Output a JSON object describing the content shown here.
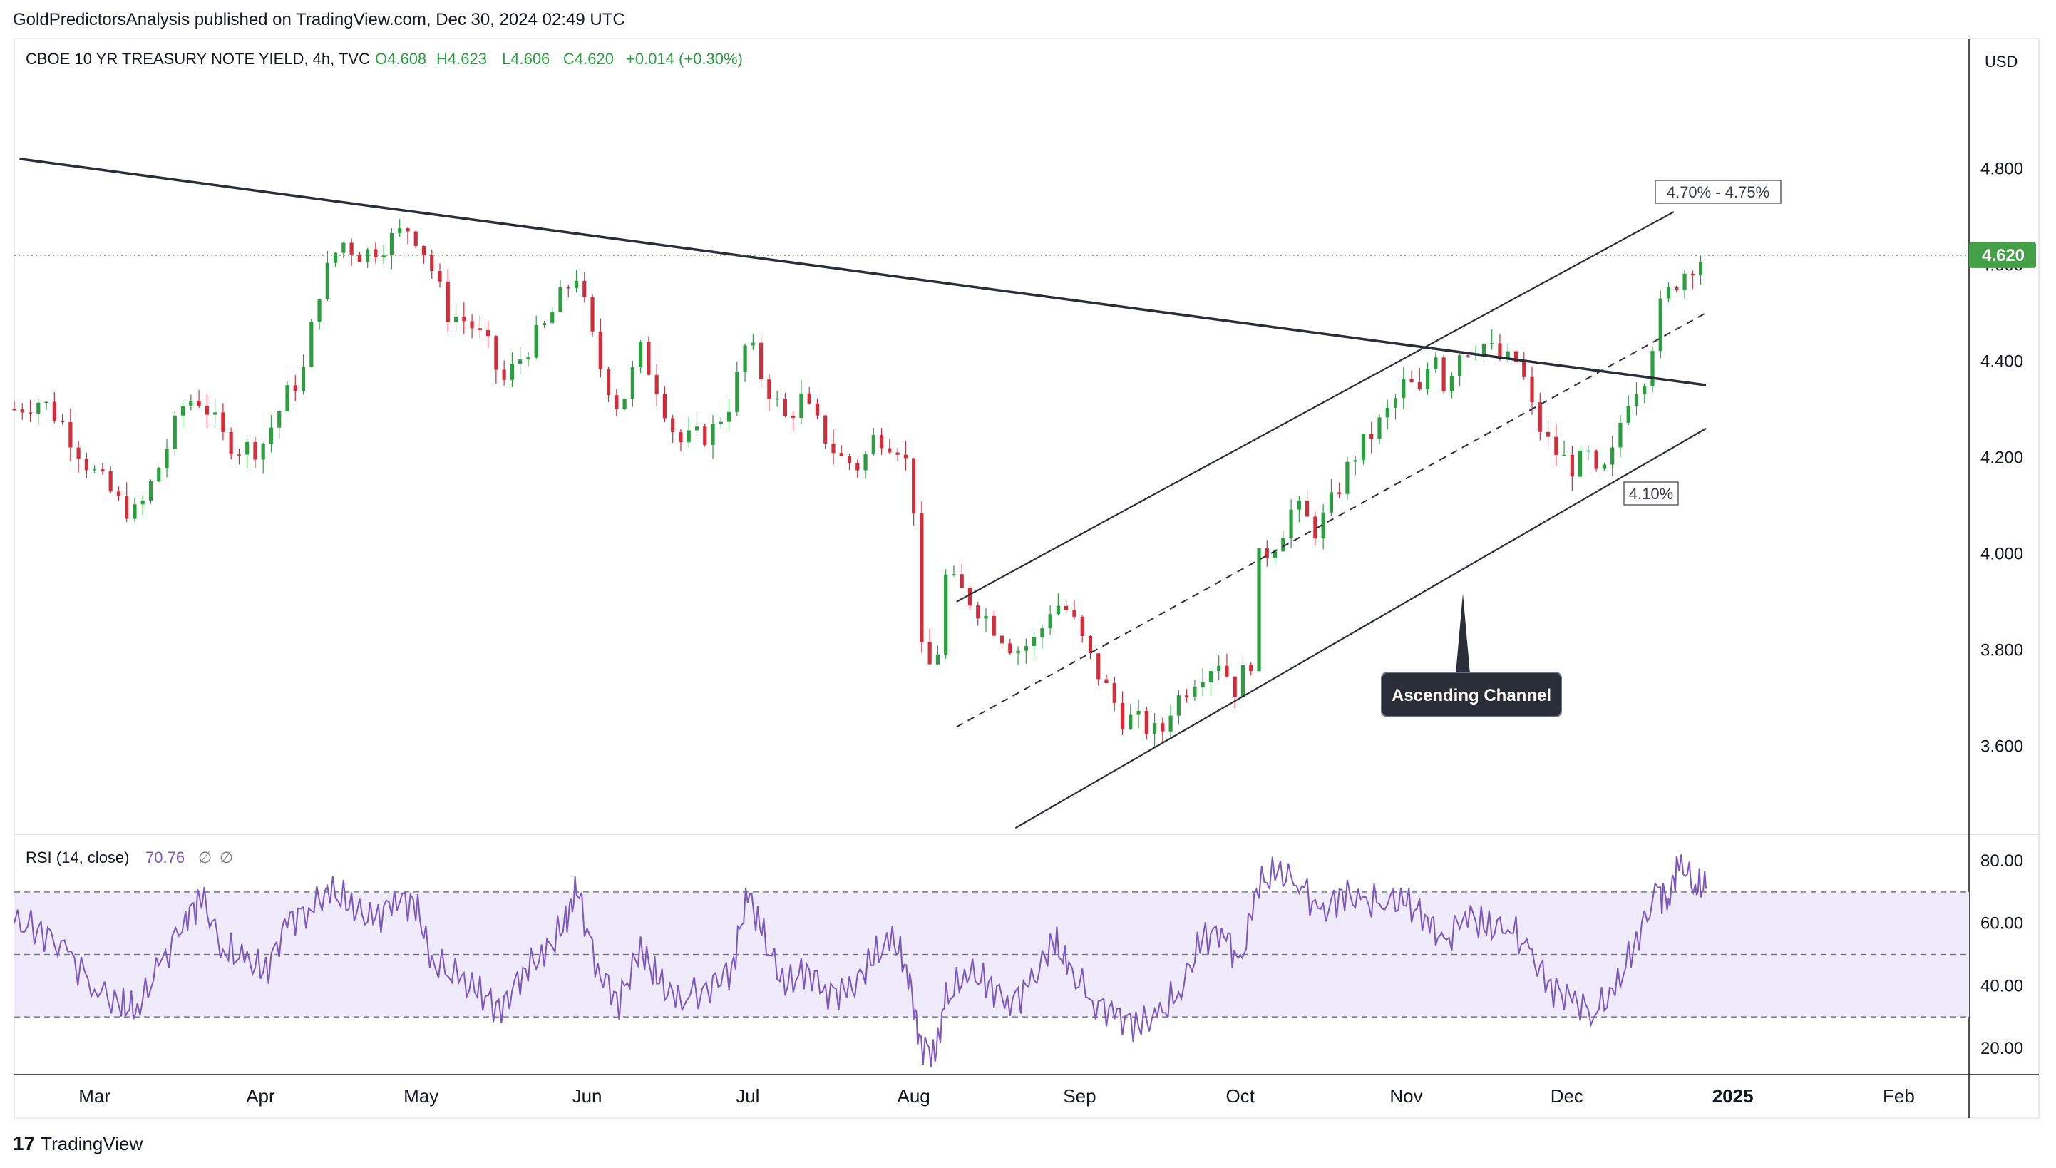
{
  "publisher": "GoldPredictorsAnalysis published on TradingView.com, Dec 30, 2024 02:49 UTC",
  "footer": {
    "logo_text": "TradingView",
    "logo_mark": "17"
  },
  "colors": {
    "up": "#2b9e3f",
    "down": "#cf2e3a",
    "rsi_line": "#7e57c2",
    "rsi_band": "#f0ebfb",
    "trend": "#2a2e39",
    "price_line": "#43a047",
    "grid": "#e0e3eb"
  },
  "chart_data": [
    {
      "type": "candlestick",
      "title": "CBOE 10 YR TREASURY NOTE YIELD, 4h, TVC",
      "ohlc": {
        "open": "O4.608",
        "high": "H4.623",
        "low": "L4.606",
        "close": "C4.620",
        "change": "+0.014 (+0.30%)"
      },
      "currency": "USD",
      "last_price": "4.620",
      "ylim": [
        3.42,
        5.07
      ],
      "y_ticks": [
        "4.800",
        "4.600",
        "4.400",
        "4.200",
        "4.000",
        "3.800",
        "3.600"
      ],
      "x_ticks": [
        "Mar",
        "Apr",
        "May",
        "Jun",
        "Jul",
        "Aug",
        "Sep",
        "Oct",
        "Nov",
        "Dec",
        "2025",
        "Feb"
      ],
      "price_path": [
        [
          "2024-02-15",
          4.3
        ],
        [
          "2024-02-20",
          4.32
        ],
        [
          "2024-02-24",
          4.27
        ],
        [
          "2024-02-29",
          4.18
        ],
        [
          "2024-03-06",
          4.1
        ],
        [
          "2024-03-09",
          4.08
        ],
        [
          "2024-03-13",
          4.18
        ],
        [
          "2024-03-18",
          4.32
        ],
        [
          "2024-03-21",
          4.32
        ],
        [
          "2024-03-25",
          4.24
        ],
        [
          "2024-03-28",
          4.22
        ],
        [
          "2024-04-01",
          4.22
        ],
        [
          "2024-04-06",
          4.33
        ],
        [
          "2024-04-09",
          4.38
        ],
        [
          "2024-04-12",
          4.55
        ],
        [
          "2024-04-16",
          4.65
        ],
        [
          "2024-04-20",
          4.62
        ],
        [
          "2024-04-25",
          4.65
        ],
        [
          "2024-04-29",
          4.68
        ],
        [
          "2024-05-02",
          4.62
        ],
        [
          "2024-05-06",
          4.5
        ],
        [
          "2024-05-10",
          4.48
        ],
        [
          "2024-05-14",
          4.42
        ],
        [
          "2024-05-16",
          4.35
        ],
        [
          "2024-05-21",
          4.43
        ],
        [
          "2024-05-24",
          4.47
        ],
        [
          "2024-05-28",
          4.55
        ],
        [
          "2024-05-30",
          4.58
        ],
        [
          "2024-06-03",
          4.4
        ],
        [
          "2024-06-07",
          4.3
        ],
        [
          "2024-06-11",
          4.42
        ],
        [
          "2024-06-14",
          4.35
        ],
        [
          "2024-06-18",
          4.23
        ],
        [
          "2024-06-24",
          4.25
        ],
        [
          "2024-06-28",
          4.32
        ],
        [
          "2024-07-01",
          4.45
        ],
        [
          "2024-07-03",
          4.38
        ],
        [
          "2024-07-08",
          4.28
        ],
        [
          "2024-07-11",
          4.32
        ],
        [
          "2024-07-15",
          4.25
        ],
        [
          "2024-07-18",
          4.2
        ],
        [
          "2024-07-22",
          4.18
        ],
        [
          "2024-07-25",
          4.25
        ],
        [
          "2024-07-30",
          4.22
        ],
        [
          "2024-08-01",
          4.1
        ],
        [
          "2024-08-02",
          3.8
        ],
        [
          "2024-08-05",
          3.75
        ],
        [
          "2024-08-07",
          3.95
        ],
        [
          "2024-08-12",
          3.9
        ],
        [
          "2024-08-16",
          3.85
        ],
        [
          "2024-08-20",
          3.8
        ],
        [
          "2024-08-24",
          3.82
        ],
        [
          "2024-08-27",
          3.9
        ],
        [
          "2024-08-30",
          3.88
        ],
        [
          "2024-09-03",
          3.78
        ],
        [
          "2024-09-06",
          3.72
        ],
        [
          "2024-09-09",
          3.66
        ],
        [
          "2024-09-12",
          3.65
        ],
        [
          "2024-09-16",
          3.62
        ],
        [
          "2024-09-18",
          3.68
        ],
        [
          "2024-09-23",
          3.75
        ],
        [
          "2024-09-27",
          3.78
        ],
        [
          "2024-09-30",
          3.72
        ],
        [
          "2024-10-03",
          3.78
        ],
        [
          "2024-10-04",
          3.98
        ],
        [
          "2024-10-08",
          4.03
        ],
        [
          "2024-10-11",
          4.1
        ],
        [
          "2024-10-15",
          4.05
        ],
        [
          "2024-10-17",
          4.08
        ],
        [
          "2024-10-22",
          4.2
        ],
        [
          "2024-10-25",
          4.24
        ],
        [
          "2024-10-29",
          4.3
        ],
        [
          "2024-11-01",
          4.36
        ],
        [
          "2024-11-04",
          4.32
        ],
        [
          "2024-11-06",
          4.45
        ],
        [
          "2024-11-08",
          4.35
        ],
        [
          "2024-11-11",
          4.42
        ],
        [
          "2024-11-15",
          4.44
        ],
        [
          "2024-11-19",
          4.4
        ],
        [
          "2024-11-22",
          4.4
        ],
        [
          "2024-11-25",
          4.28
        ],
        [
          "2024-11-28",
          4.22
        ],
        [
          "2024-12-02",
          4.18
        ],
        [
          "2024-12-05",
          4.2
        ],
        [
          "2024-12-06",
          4.15
        ],
        [
          "2024-12-09",
          4.18
        ],
        [
          "2024-12-12",
          4.32
        ],
        [
          "2024-12-16",
          4.38
        ],
        [
          "2024-12-18",
          4.5
        ],
        [
          "2024-12-21",
          4.56
        ],
        [
          "2024-12-24",
          4.6
        ],
        [
          "2024-12-27",
          4.62
        ]
      ],
      "trendlines": [
        {
          "name": "Descending trendline",
          "from": [
            "2024-02-16",
            4.82
          ],
          "to": [
            "2024-12-27",
            4.35
          ],
          "style": "solid-thick"
        },
        {
          "name": "Channel upper",
          "from": [
            "2024-08-09",
            3.9
          ],
          "to": [
            "2024-12-21",
            4.71
          ],
          "style": "solid"
        },
        {
          "name": "Channel middle",
          "from": [
            "2024-08-09",
            3.64
          ],
          "to": [
            "2024-12-27",
            4.5
          ],
          "style": "dashed"
        },
        {
          "name": "Channel lower",
          "from": [
            "2024-08-20",
            3.43
          ],
          "to": [
            "2024-12-27",
            4.26
          ],
          "style": "solid"
        }
      ],
      "annotations": {
        "target": "4.70% - 4.75%",
        "support": "4.10%",
        "callout": "Ascending Channel"
      }
    },
    {
      "type": "line",
      "title": "RSI (14, close)",
      "value": "70.76",
      "extra_values": [
        "∅",
        "∅"
      ],
      "ylim": [
        12,
        88
      ],
      "y_ticks": [
        "80.00",
        "60.00",
        "40.00",
        "20.00"
      ],
      "bands": [
        30,
        50,
        70
      ],
      "series": [
        [
          "2024-02-15",
          60
        ],
        [
          "2024-02-20",
          58
        ],
        [
          "2024-02-25",
          50
        ],
        [
          "2024-03-01",
          40
        ],
        [
          "2024-03-06",
          33
        ],
        [
          "2024-03-09",
          33
        ],
        [
          "2024-03-13",
          45
        ],
        [
          "2024-03-18",
          62
        ],
        [
          "2024-03-21",
          68
        ],
        [
          "2024-03-25",
          52
        ],
        [
          "2024-03-29",
          48
        ],
        [
          "2024-04-02",
          45
        ],
        [
          "2024-04-06",
          60
        ],
        [
          "2024-04-10",
          65
        ],
        [
          "2024-04-14",
          70
        ],
        [
          "2024-04-18",
          66
        ],
        [
          "2024-04-22",
          60
        ],
        [
          "2024-04-26",
          68
        ],
        [
          "2024-04-30",
          66
        ],
        [
          "2024-05-03",
          48
        ],
        [
          "2024-05-08",
          42
        ],
        [
          "2024-05-12",
          38
        ],
        [
          "2024-05-16",
          32
        ],
        [
          "2024-05-20",
          45
        ],
        [
          "2024-05-24",
          50
        ],
        [
          "2024-05-28",
          60
        ],
        [
          "2024-05-30",
          71
        ],
        [
          "2024-06-03",
          45
        ],
        [
          "2024-06-07",
          35
        ],
        [
          "2024-06-11",
          52
        ],
        [
          "2024-06-14",
          42
        ],
        [
          "2024-06-18",
          35
        ],
        [
          "2024-06-24",
          40
        ],
        [
          "2024-06-28",
          45
        ],
        [
          "2024-07-01",
          70
        ],
        [
          "2024-07-04",
          55
        ],
        [
          "2024-07-08",
          40
        ],
        [
          "2024-07-12",
          45
        ],
        [
          "2024-07-16",
          38
        ],
        [
          "2024-07-20",
          38
        ],
        [
          "2024-07-24",
          48
        ],
        [
          "2024-07-28",
          55
        ],
        [
          "2024-07-31",
          45
        ],
        [
          "2024-08-02",
          22
        ],
        [
          "2024-08-05",
          18
        ],
        [
          "2024-08-07",
          35
        ],
        [
          "2024-08-11",
          45
        ],
        [
          "2024-08-15",
          40
        ],
        [
          "2024-08-19",
          35
        ],
        [
          "2024-08-23",
          40
        ],
        [
          "2024-08-27",
          55
        ],
        [
          "2024-08-30",
          45
        ],
        [
          "2024-09-04",
          35
        ],
        [
          "2024-09-08",
          30
        ],
        [
          "2024-09-12",
          28
        ],
        [
          "2024-09-16",
          30
        ],
        [
          "2024-09-20",
          40
        ],
        [
          "2024-09-24",
          55
        ],
        [
          "2024-09-28",
          58
        ],
        [
          "2024-10-01",
          45
        ],
        [
          "2024-10-04",
          72
        ],
        [
          "2024-10-08",
          76
        ],
        [
          "2024-10-12",
          74
        ],
        [
          "2024-10-16",
          62
        ],
        [
          "2024-10-20",
          70
        ],
        [
          "2024-10-24",
          66
        ],
        [
          "2024-10-28",
          68
        ],
        [
          "2024-11-01",
          66
        ],
        [
          "2024-11-05",
          62
        ],
        [
          "2024-11-08",
          52
        ],
        [
          "2024-11-12",
          64
        ],
        [
          "2024-11-16",
          58
        ],
        [
          "2024-11-20",
          60
        ],
        [
          "2024-11-24",
          50
        ],
        [
          "2024-11-28",
          40
        ],
        [
          "2024-12-02",
          35
        ],
        [
          "2024-12-06",
          32
        ],
        [
          "2024-12-10",
          38
        ],
        [
          "2024-12-14",
          55
        ],
        [
          "2024-12-18",
          70
        ],
        [
          "2024-12-20",
          68
        ],
        [
          "2024-12-22",
          80
        ],
        [
          "2024-12-25",
          72
        ],
        [
          "2024-12-27",
          71
        ]
      ]
    }
  ]
}
